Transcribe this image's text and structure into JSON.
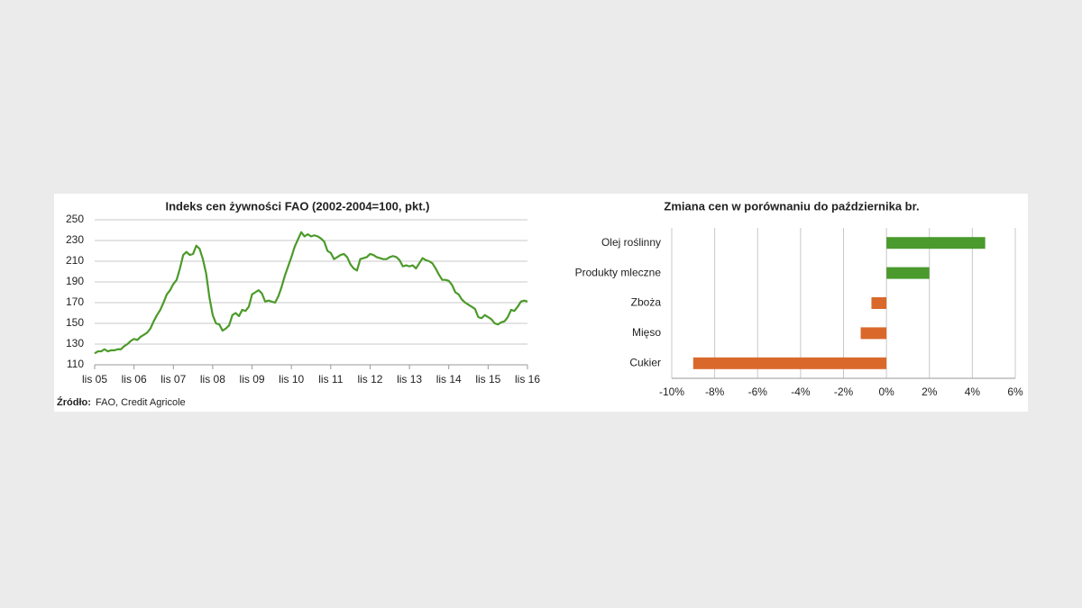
{
  "chart_data": [
    {
      "type": "line",
      "title": "Indeks cen żywności FAO (2002-2004=100, pkt.)",
      "categories": [
        "lis 05",
        null,
        null,
        null,
        null,
        null,
        null,
        null,
        null,
        null,
        null,
        null,
        "lis 06",
        null,
        null,
        null,
        null,
        null,
        null,
        null,
        null,
        null,
        null,
        null,
        "lis 07",
        null,
        null,
        null,
        null,
        null,
        null,
        null,
        null,
        null,
        null,
        null,
        "lis 08",
        null,
        null,
        null,
        null,
        null,
        null,
        null,
        null,
        null,
        null,
        null,
        "lis 09",
        null,
        null,
        null,
        null,
        null,
        null,
        null,
        null,
        null,
        null,
        null,
        "lis 10",
        null,
        null,
        null,
        null,
        null,
        null,
        null,
        null,
        null,
        null,
        null,
        "lis 11",
        null,
        null,
        null,
        null,
        null,
        null,
        null,
        null,
        null,
        null,
        null,
        "lis 12",
        null,
        null,
        null,
        null,
        null,
        null,
        null,
        null,
        null,
        null,
        null,
        "lis 13",
        null,
        null,
        null,
        null,
        null,
        null,
        null,
        null,
        null,
        null,
        null,
        "lis 14",
        null,
        null,
        null,
        null,
        null,
        null,
        null,
        null,
        null,
        null,
        null,
        "lis 15",
        null,
        null,
        null,
        null,
        null,
        null,
        null,
        null,
        null,
        null,
        null,
        "lis 16"
      ],
      "values": [
        121,
        123,
        123,
        125,
        123,
        124,
        124,
        125,
        125,
        128,
        130,
        133,
        135,
        134,
        137,
        139,
        141,
        145,
        152,
        158,
        163,
        170,
        178,
        182,
        188,
        192,
        203,
        216,
        219,
        216,
        217,
        225,
        222,
        212,
        198,
        175,
        158,
        150,
        149,
        143,
        145,
        148,
        158,
        160,
        157,
        163,
        162,
        166,
        178,
        180,
        182,
        179,
        171,
        172,
        171,
        170,
        176,
        185,
        196,
        205,
        214,
        224,
        231,
        238,
        234,
        236,
        234,
        235,
        234,
        232,
        229,
        220,
        218,
        212,
        214,
        216,
        217,
        214,
        207,
        203,
        201,
        212,
        213,
        214,
        217,
        216,
        214,
        213,
        212,
        212,
        214,
        215,
        214,
        211,
        205,
        206,
        205,
        206,
        203,
        208,
        213,
        211,
        210,
        208,
        203,
        197,
        192,
        192,
        191,
        187,
        180,
        178,
        173,
        170,
        168,
        166,
        164,
        156,
        155,
        158,
        156,
        154,
        150,
        149,
        151,
        152,
        156,
        163,
        162,
        166,
        171,
        172,
        171
      ],
      "color": "#4c9a2a",
      "ylim": [
        110,
        250
      ],
      "yticks": [
        110,
        130,
        150,
        170,
        190,
        210,
        230,
        250
      ],
      "grid": true,
      "source_label": "Źródło:",
      "source": "FAO, Credit Agricole"
    },
    {
      "type": "bar",
      "orientation": "horizontal",
      "title": "Zmiana cen w porównaniu do października br.",
      "categories": [
        "Olej roślinny",
        "Produkty mleczne",
        "Zboża",
        "Mięso",
        "Cukier"
      ],
      "values": [
        4.6,
        2.0,
        -0.7,
        -1.2,
        -9.0
      ],
      "colors": [
        "#4a9a2e",
        "#4a9a2e",
        "#d9692b",
        "#d9692b",
        "#d9692b"
      ],
      "xlim": [
        -10,
        6
      ],
      "xticks": [
        {
          "value": -10,
          "label": "-10%"
        },
        {
          "value": -8,
          "label": "-8%"
        },
        {
          "value": -6,
          "label": "-6%"
        },
        {
          "value": -4,
          "label": "-4%"
        },
        {
          "value": -2,
          "label": "-2%"
        },
        {
          "value": 0,
          "label": "0%"
        },
        {
          "value": 2,
          "label": "2%"
        },
        {
          "value": 4,
          "label": "4%"
        },
        {
          "value": 6,
          "label": "6%"
        }
      ],
      "grid": true
    }
  ]
}
